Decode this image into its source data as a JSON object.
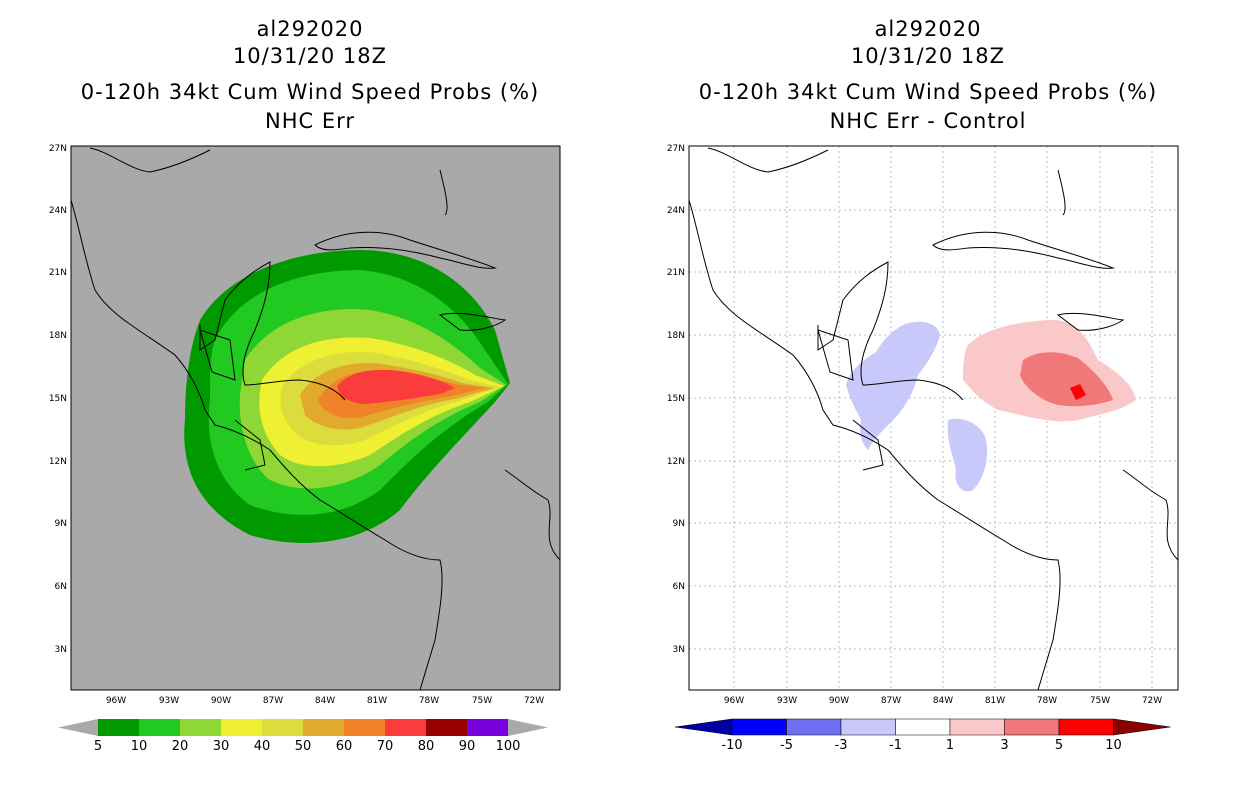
{
  "left": {
    "storm": "al292020",
    "time": "10/31/20 18Z",
    "product": "0-120h 34kt Cum Wind Speed Probs (%)",
    "subtitle": "NHC Err",
    "bg": "#a9a9a9",
    "colorbar": {
      "labels": [
        "5",
        "10",
        "20",
        "30",
        "40",
        "50",
        "60",
        "70",
        "80",
        "90",
        "100"
      ],
      "colors": [
        "#009a00",
        "#21c921",
        "#8fd735",
        "#f0f032",
        "#dcdc3c",
        "#e1aa2d",
        "#f08228",
        "#fa3c3c",
        "#960000",
        "#7800dc"
      ],
      "arrow_left": "#a9a9a9",
      "arrow_right": "#a9a9a9"
    }
  },
  "right": {
    "storm": "al292020",
    "time": "10/31/20 18Z",
    "product": "0-120h 34kt Cum Wind Speed Probs (%)",
    "subtitle": "NHC Err - Control",
    "bg": "#ffffff",
    "colorbar": {
      "labels": [
        "-10",
        "-5",
        "-3",
        "-1",
        "1",
        "3",
        "5",
        "10"
      ],
      "colors": [
        "#0000ff",
        "#6e6ef0",
        "#c8c8fa",
        "#ffffff",
        "#fac8c8",
        "#f07878",
        "#ff0000"
      ],
      "arrow_left": "#0000a0",
      "arrow_right": "#8c0000"
    }
  },
  "axes": {
    "lat_labels": [
      "27N",
      "24N",
      "21N",
      "18N",
      "15N",
      "12N",
      "9N",
      "6N",
      "3N"
    ],
    "lon_labels": [
      "96W",
      "93W",
      "90W",
      "87W",
      "84W",
      "81W",
      "78W",
      "75W",
      "72W"
    ]
  }
}
